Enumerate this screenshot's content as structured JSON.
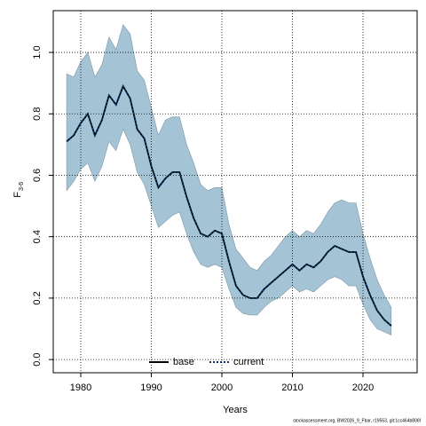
{
  "chart_data": {
    "type": "line",
    "xlabel": "Years",
    "ylabel": "F",
    "ylabel_sub": "3-6",
    "footer": "stockassessment.org, BW2026_9_Fbar, r19553, git:1cc464b806f",
    "x": [
      1978,
      1979,
      1980,
      1981,
      1982,
      1983,
      1984,
      1985,
      1986,
      1987,
      1988,
      1989,
      1990,
      1991,
      1992,
      1993,
      1994,
      1995,
      1996,
      1997,
      1998,
      1999,
      2000,
      2001,
      2002,
      2003,
      2004,
      2005,
      2006,
      2007,
      2008,
      2009,
      2010,
      2011,
      2012,
      2013,
      2014,
      2015,
      2016,
      2017,
      2018,
      2019,
      2020,
      2021,
      2022,
      2023,
      2024
    ],
    "band": {
      "color": "#a4c4d6",
      "upper": [
        0.93,
        0.92,
        0.97,
        1.0,
        0.92,
        0.96,
        1.05,
        1.01,
        1.09,
        1.06,
        0.94,
        0.91,
        0.82,
        0.73,
        0.78,
        0.79,
        0.79,
        0.7,
        0.64,
        0.57,
        0.55,
        0.56,
        0.56,
        0.44,
        0.36,
        0.33,
        0.3,
        0.29,
        0.32,
        0.34,
        0.37,
        0.4,
        0.42,
        0.4,
        0.42,
        0.41,
        0.44,
        0.48,
        0.51,
        0.52,
        0.51,
        0.51,
        0.41,
        0.33,
        0.26,
        0.21,
        0.17
      ],
      "lower": [
        0.55,
        0.58,
        0.62,
        0.64,
        0.58,
        0.63,
        0.71,
        0.68,
        0.75,
        0.7,
        0.61,
        0.57,
        0.5,
        0.43,
        0.45,
        0.47,
        0.48,
        0.41,
        0.35,
        0.31,
        0.3,
        0.31,
        0.3,
        0.23,
        0.17,
        0.15,
        0.145,
        0.145,
        0.17,
        0.19,
        0.2,
        0.22,
        0.24,
        0.22,
        0.23,
        0.22,
        0.24,
        0.26,
        0.27,
        0.26,
        0.24,
        0.24,
        0.18,
        0.13,
        0.1,
        0.09,
        0.08
      ]
    },
    "series": [
      {
        "name": "base",
        "color": "#000000",
        "dash": false,
        "values": [
          0.71,
          0.73,
          0.77,
          0.8,
          0.73,
          0.78,
          0.86,
          0.83,
          0.89,
          0.85,
          0.75,
          0.72,
          0.63,
          0.56,
          0.59,
          0.61,
          0.61,
          0.53,
          0.46,
          0.41,
          0.4,
          0.42,
          0.41,
          0.32,
          0.24,
          0.21,
          0.2,
          0.2,
          0.23,
          0.25,
          0.27,
          0.29,
          0.31,
          0.29,
          0.31,
          0.3,
          0.32,
          0.35,
          0.37,
          0.36,
          0.35,
          0.35,
          0.27,
          0.21,
          0.16,
          0.13,
          0.11
        ]
      },
      {
        "name": "current",
        "color": "#00366b",
        "dash": true,
        "values": [
          0.71,
          0.73,
          0.77,
          0.8,
          0.73,
          0.78,
          0.86,
          0.83,
          0.89,
          0.85,
          0.75,
          0.72,
          0.63,
          0.56,
          0.59,
          0.61,
          0.61,
          0.53,
          0.46,
          0.41,
          0.4,
          0.42,
          0.41,
          0.32,
          0.24,
          0.21,
          0.2,
          0.2,
          0.23,
          0.25,
          0.27,
          0.29,
          0.31,
          0.29,
          0.31,
          0.3,
          0.32,
          0.35,
          0.37,
          0.36,
          0.35,
          0.35,
          0.27,
          0.21,
          0.16,
          0.13,
          0.11
        ]
      }
    ],
    "xlim": [
      1976.1,
      2027.67
    ],
    "xticks": [
      1980,
      1990,
      2000,
      2010,
      2020
    ],
    "ylim": [
      -0.043,
      1.136
    ],
    "yticks": [
      {
        "value": 0,
        "label": "0.0"
      },
      0.2,
      0.4,
      0.6,
      0.8,
      {
        "value": 1,
        "label": "1.0"
      }
    ],
    "grid": true,
    "legend": "bottom"
  }
}
